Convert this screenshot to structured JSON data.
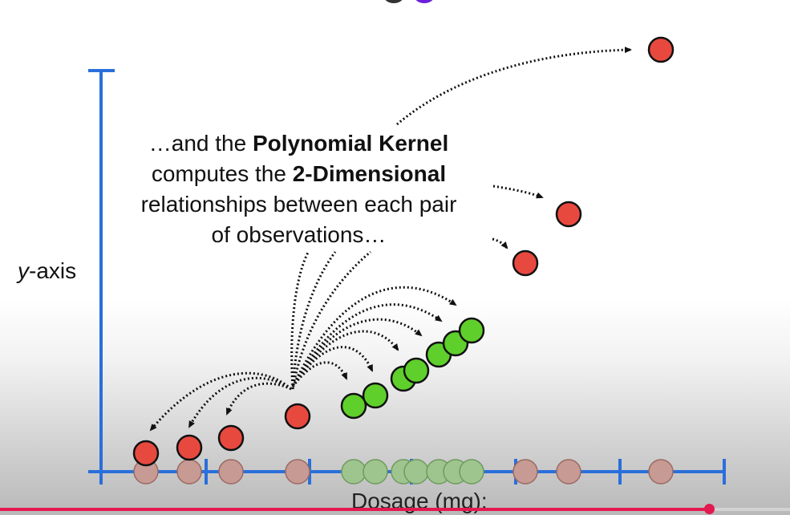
{
  "caption": {
    "line1_pre": "…and the ",
    "line1_bold": "Polynomial Kernel",
    "line2_pre": "computes the ",
    "line2_bold": "2-Dimensional",
    "line3": "relationships between each pair",
    "line4": "of observations…"
  },
  "axes": {
    "y_label_italic": "y",
    "y_label_rest": "-axis",
    "x_label": "Dosage (mg):"
  },
  "colors": {
    "axis": "#2a6fdb",
    "red": "#e8493f",
    "green": "#5fcf2c",
    "red_faded": "#c79a93",
    "green_faded": "#9ec58e",
    "progress": "#e4184f"
  },
  "player": {
    "progress_fraction": 0.897
  }
}
